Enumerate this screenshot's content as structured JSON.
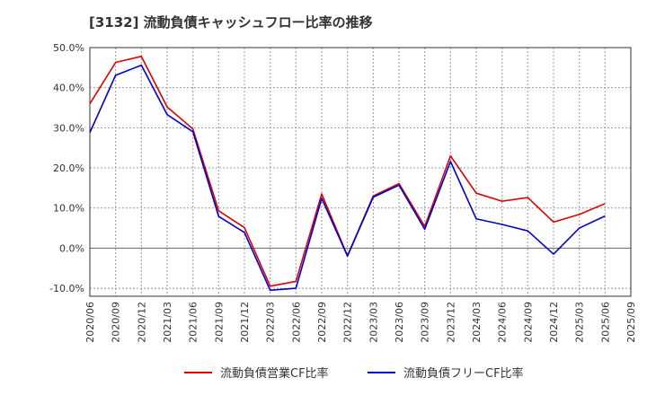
{
  "chart_data": {
    "type": "line",
    "title": "[3132]  流動負債キャッシュフロー比率の推移",
    "xlabel": "",
    "ylabel": "",
    "ylim": [
      -12,
      50
    ],
    "y_ticks": [
      "-10.0%",
      "0.0%",
      "10.0%",
      "20.0%",
      "30.0%",
      "40.0%",
      "50.0%"
    ],
    "y_tick_values": [
      -10,
      0,
      10,
      20,
      30,
      40,
      50
    ],
    "grid": true,
    "legend_position": "bottom",
    "x": [
      "2020/06",
      "2020/09",
      "2020/12",
      "2021/03",
      "2021/06",
      "2021/09",
      "2021/12",
      "2022/03",
      "2022/06",
      "2022/09",
      "2022/12",
      "2023/03",
      "2023/06",
      "2023/09",
      "2023/12",
      "2024/03",
      "2024/06",
      "2024/09",
      "2024/12",
      "2025/03",
      "2025/06",
      "2025/09"
    ],
    "series": [
      {
        "name": "流動負債営業CF比率",
        "color": "#dd0000",
        "values": [
          36.0,
          46.3,
          47.8,
          35.2,
          29.7,
          9.3,
          5.1,
          -9.5,
          -8.3,
          13.5,
          -1.9,
          13.0,
          16.1,
          5.4,
          23.0,
          13.7,
          11.7,
          12.6,
          6.5,
          8.4,
          11.1,
          null
        ]
      },
      {
        "name": "流動負債フリーCF比率",
        "color": "#0000cc",
        "values": [
          28.8,
          43.1,
          45.6,
          33.3,
          29.0,
          7.9,
          3.9,
          -10.5,
          -10.0,
          12.4,
          -2.0,
          12.7,
          15.7,
          4.7,
          21.6,
          7.3,
          5.9,
          4.3,
          -1.5,
          5.0,
          8.0,
          null
        ]
      }
    ]
  }
}
